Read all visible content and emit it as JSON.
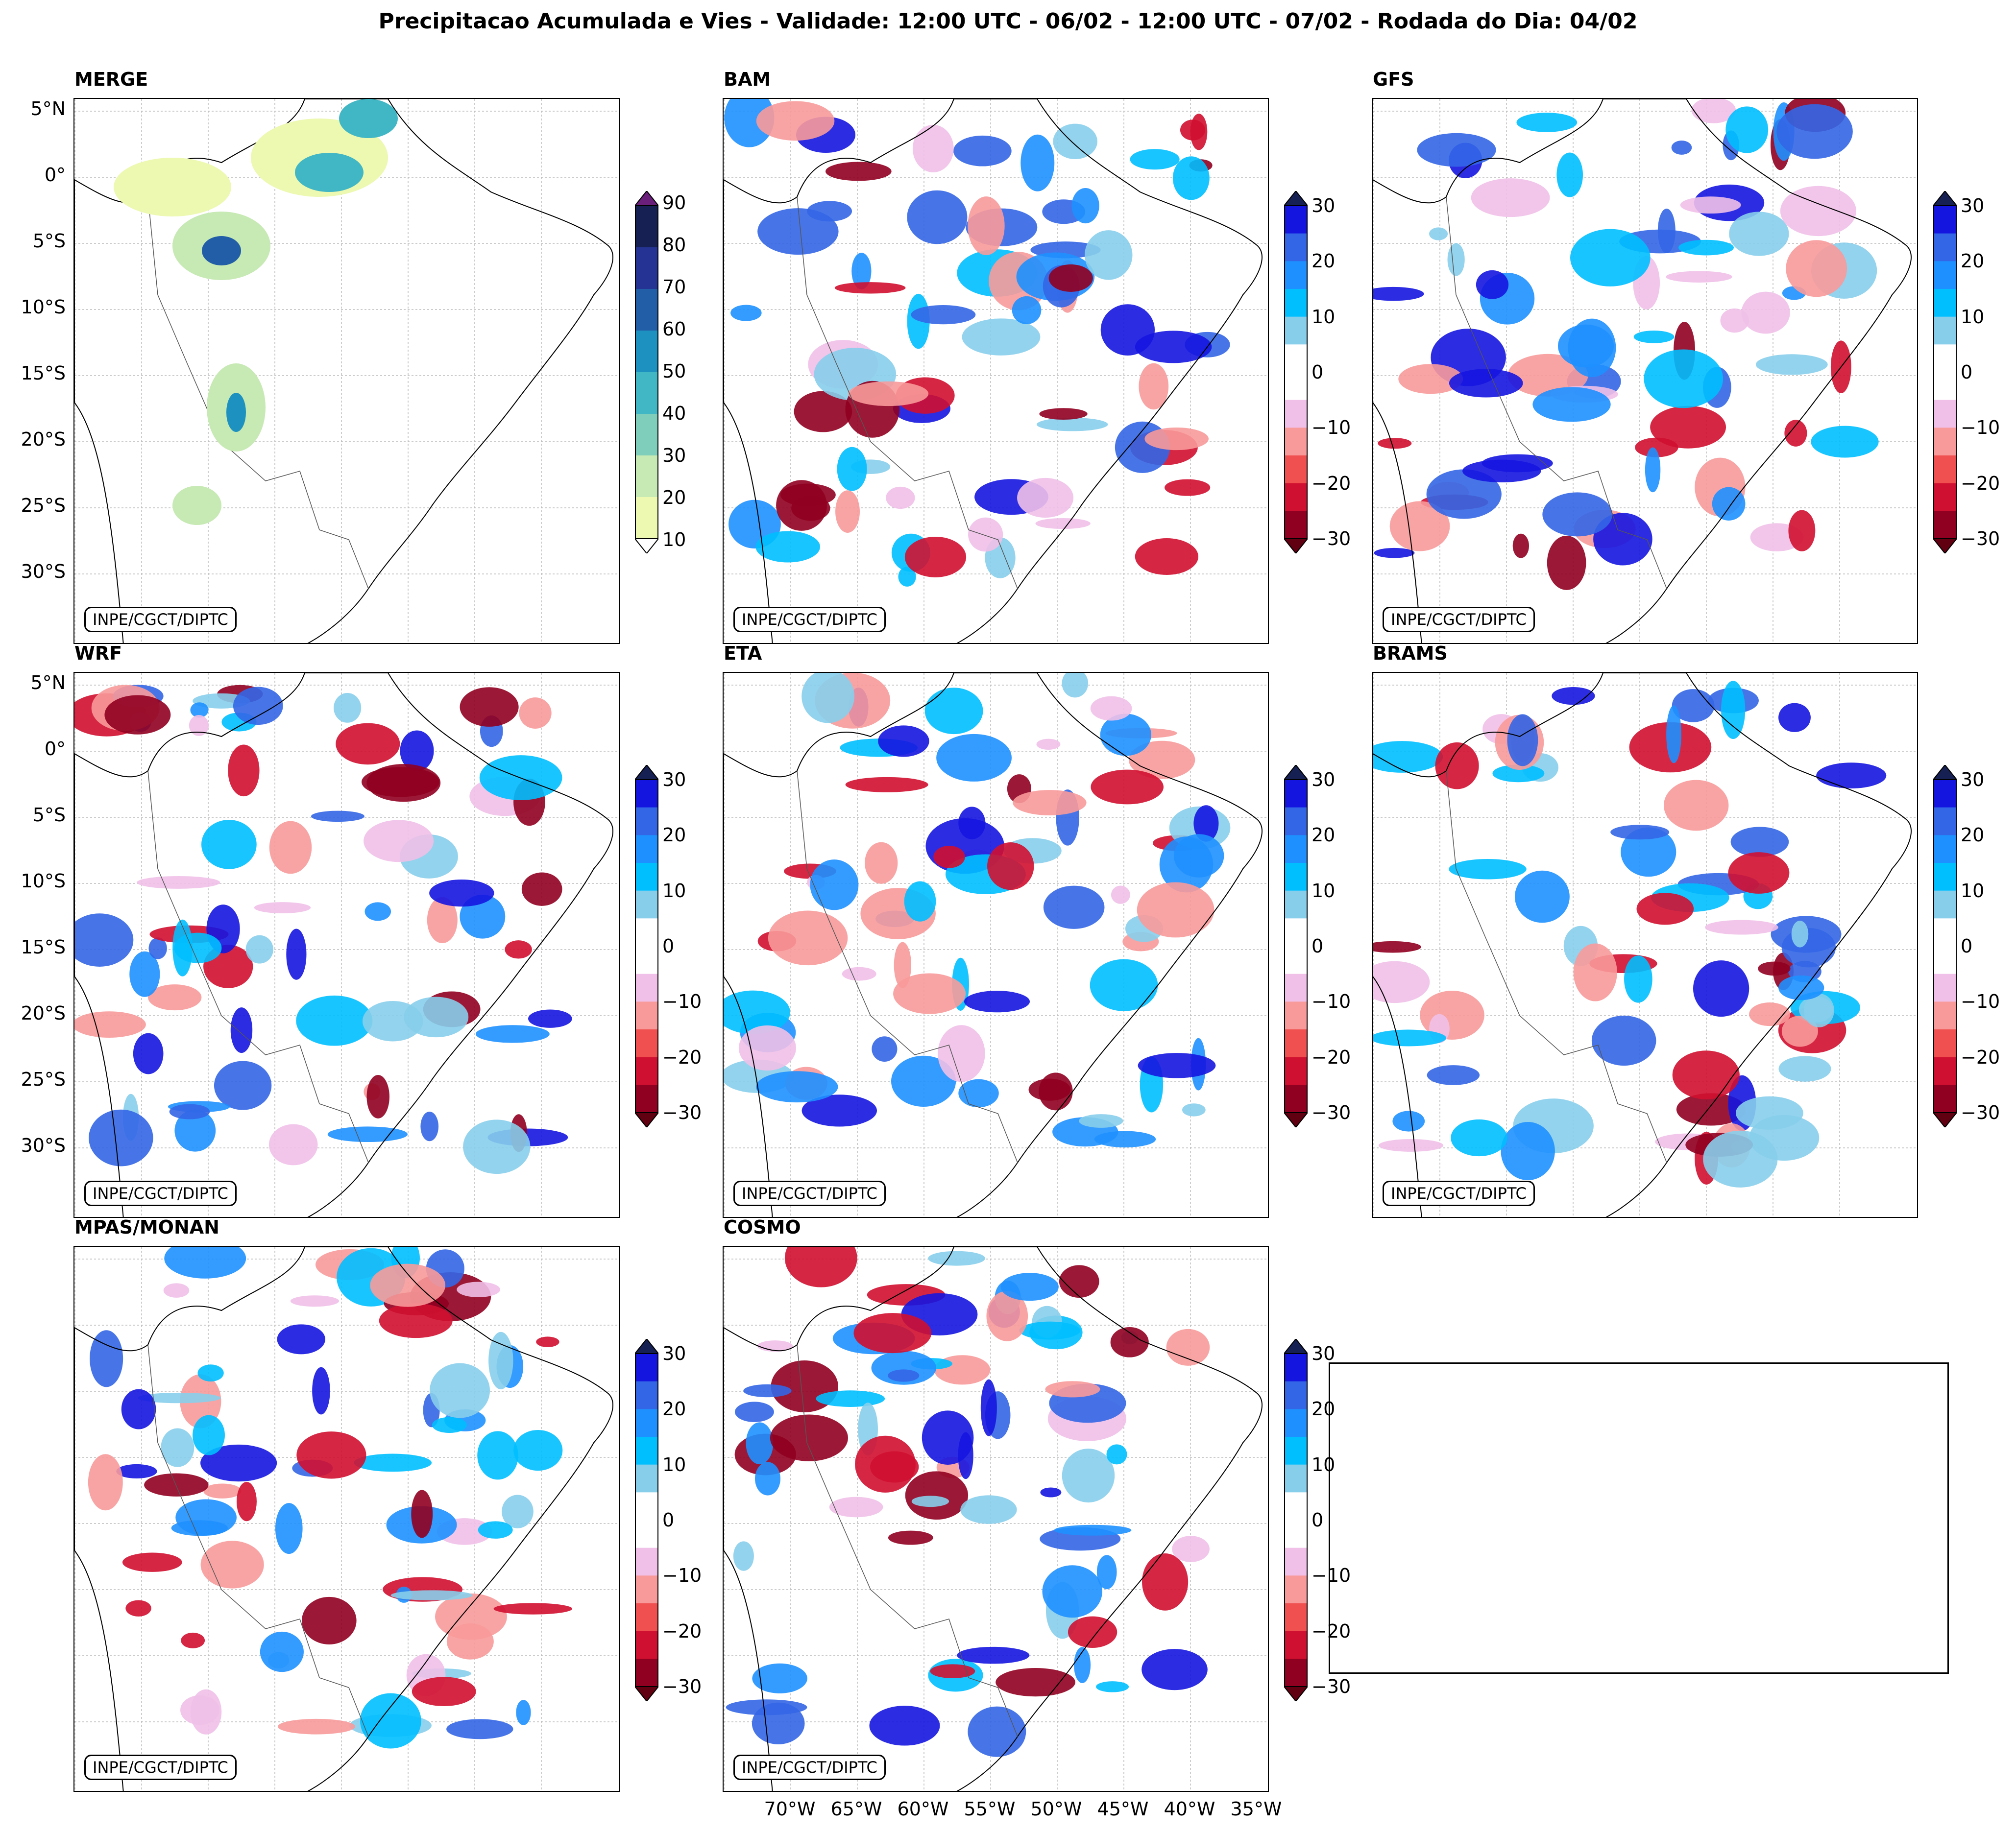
{
  "title": "Precipitacao Acumulada e Vies - Validade: 12:00 UTC - 06/02 - 12:00 UTC - 07/02 - Rodada do Dia: 04/02",
  "credit": "INPE/CGCT/DIPTC",
  "panels": [
    {
      "name": "MERGE",
      "scale": "precip"
    },
    {
      "name": "BAM",
      "scale": "bias"
    },
    {
      "name": "GFS",
      "scale": "bias"
    },
    {
      "name": "WRF",
      "scale": "bias"
    },
    {
      "name": "ETA",
      "scale": "bias"
    },
    {
      "name": "BRAMS",
      "scale": "bias"
    },
    {
      "name": "MPAS/MONAN",
      "scale": "bias"
    },
    {
      "name": "COSMO",
      "scale": "bias"
    }
  ],
  "precip_scale": {
    "ticks": [
      "90",
      "80",
      "70",
      "60",
      "50",
      "40",
      "30",
      "20",
      "10"
    ],
    "colors": [
      "#162052",
      "#253494",
      "#225ea8",
      "#1d91c0",
      "#41b6c4",
      "#7fcdbb",
      "#c7e9b4",
      "#edf8b1"
    ],
    "over_color": "#6a1f7a",
    "under_color": "#ffffff"
  },
  "bias_scale": {
    "ticks": [
      "30",
      "20",
      "10",
      "0",
      "−10",
      "−20",
      "−30"
    ],
    "colors": [
      "#1515e0",
      "#3366e6",
      "#1e90ff",
      "#00bfff",
      "#87ceeb",
      "#ffffff",
      "#ffffff",
      "#f0c0e8",
      "#f89a9a",
      "#f05050",
      "#d01030",
      "#900020"
    ],
    "over_color": "#162052",
    "under_color": "#600010"
  },
  "lat_labels": [
    "5°N",
    "0°",
    "5°S",
    "10°S",
    "15°S",
    "20°S",
    "25°S",
    "30°S"
  ],
  "lon_labels": [
    "70°W",
    "65°W",
    "60°W",
    "55°W",
    "50°W",
    "45°W",
    "40°W",
    "35°W"
  ]
}
